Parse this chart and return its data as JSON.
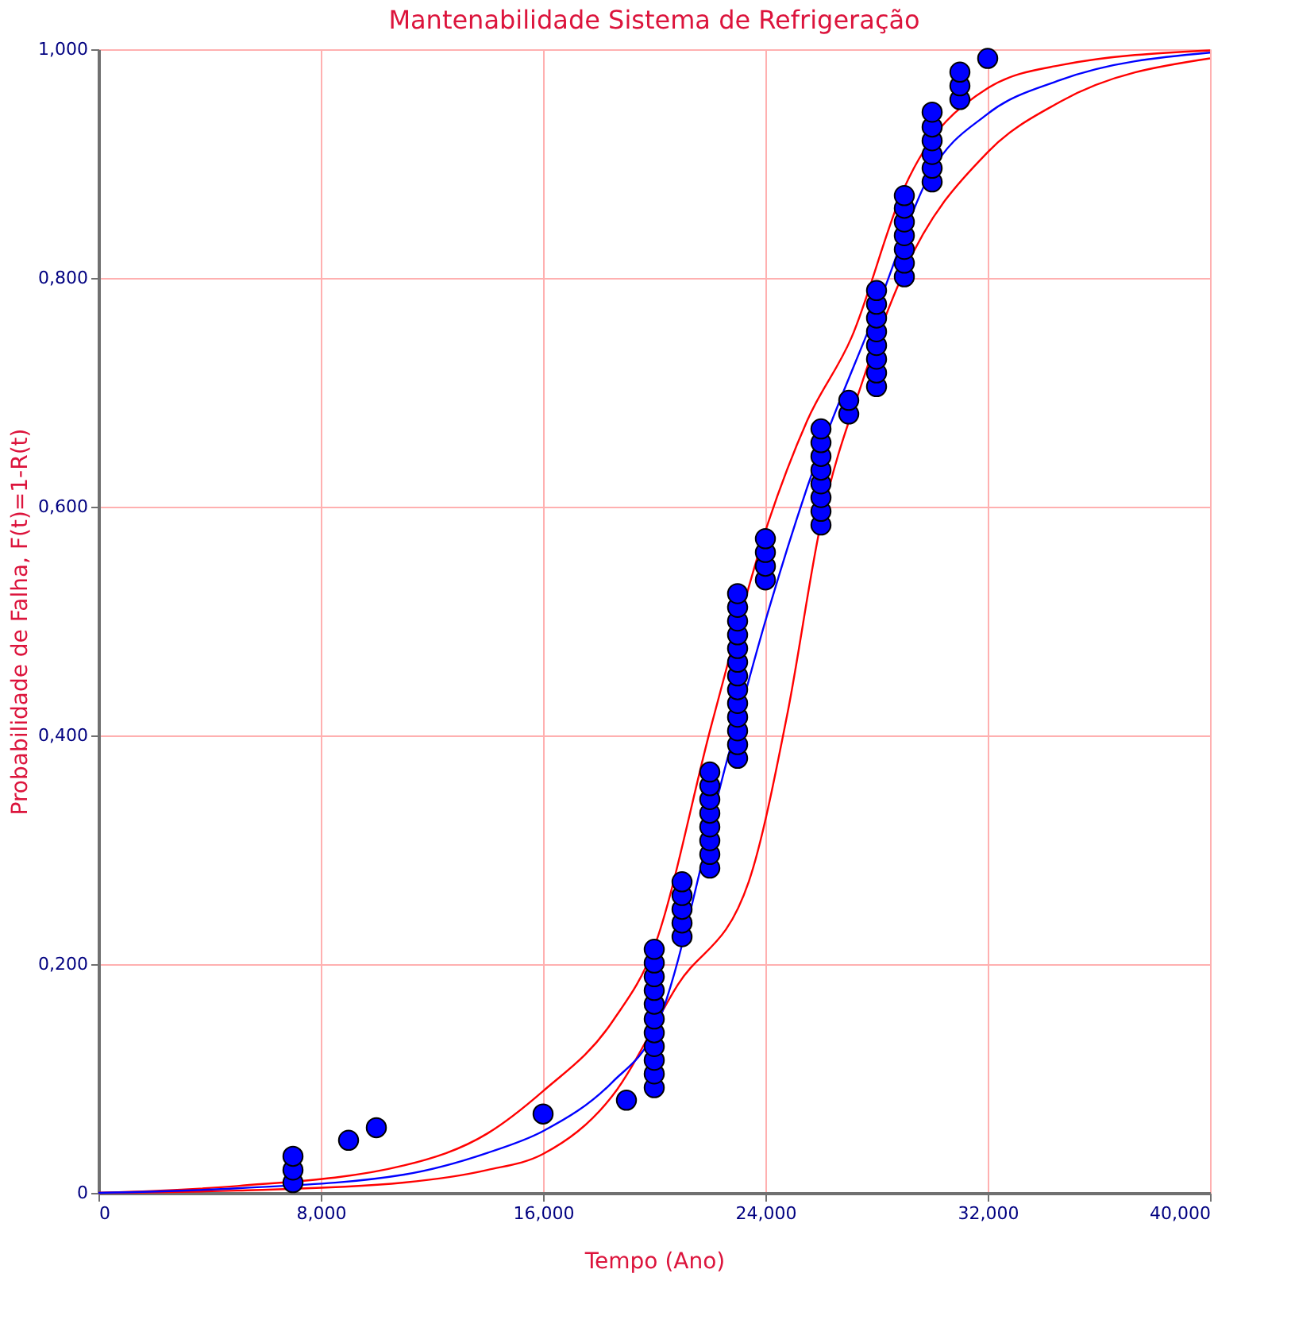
{
  "chart_data": {
    "type": "scatter",
    "title": "Mantenabilidade Sistema de Refrigeração",
    "xlabel": "Tempo (Ano)",
    "ylabel": "Probabilidade de Falha, F(t)=1-R(t)",
    "xlim": [
      0,
      40
    ],
    "ylim": [
      0,
      1
    ],
    "xticks": [
      0,
      {
        "value": 8,
        "label": "8,000"
      },
      {
        "value": 16,
        "label": "16,000"
      },
      {
        "value": 24,
        "label": "24,000"
      },
      {
        "value": 32,
        "label": "32,000"
      },
      {
        "value": 40,
        "label": "40,000"
      }
    ],
    "yticks": [
      0,
      {
        "value": 0.2,
        "label": "0,200"
      },
      {
        "value": 0.4,
        "label": "0,400"
      },
      {
        "value": 0.6,
        "label": "0,600"
      },
      {
        "value": 0.8,
        "label": "0,800"
      },
      {
        "value": 1,
        "label": "1,000"
      }
    ],
    "grid": true,
    "series": [
      {
        "type": "line",
        "color": "#ff0000",
        "x": [
          0,
          5,
          11,
          14,
          16,
          18.5,
          20,
          22.08,
          24.1,
          25.5,
          27.1,
          29,
          32,
          34.6,
          40
        ],
        "values": [
          0,
          0.006,
          0.024,
          0.052,
          0.089,
          0.15,
          0.215,
          0.411,
          0.586,
          0.675,
          0.748,
          0.879,
          0.966,
          0.986,
          0.999
        ]
      },
      {
        "type": "line",
        "color": "#ff0000",
        "x": [
          0,
          5,
          11,
          14,
          16,
          18.5,
          20.85,
          23.4,
          24.8,
          26,
          27.5,
          29,
          32,
          34.6,
          40
        ],
        "values": [
          0,
          0.002,
          0.009,
          0.02,
          0.034,
          0.085,
          0.182,
          0.272,
          0.42,
          0.586,
          0.71,
          0.806,
          0.91,
          0.954,
          0.992
        ]
      },
      {
        "type": "line",
        "color": "#0000ff",
        "x": [
          0,
          5,
          11,
          14,
          16,
          18.5,
          20,
          22.64,
          24,
          25.45,
          28,
          29.95,
          31.97,
          34.6,
          40
        ],
        "values": [
          0,
          0.004,
          0.016,
          0.035,
          0.054,
          0.097,
          0.141,
          0.38,
          0.5,
          0.613,
          0.772,
          0.892,
          0.943,
          0.973,
          0.997
        ]
      },
      {
        "color": "#0000ff",
        "marker": "circle",
        "x": [
          7,
          7,
          7,
          9,
          10,
          16,
          19,
          20,
          20,
          20,
          20,
          20,
          20,
          20,
          20,
          20,
          20,
          20,
          21,
          21,
          21,
          21,
          21,
          22,
          22,
          22,
          22,
          22,
          22,
          22,
          22,
          23,
          23,
          23,
          23,
          23,
          23,
          23,
          23,
          23,
          23,
          23,
          23,
          23,
          24,
          24,
          24,
          24,
          26,
          26,
          26,
          26,
          26,
          26,
          26,
          26,
          27,
          27,
          28,
          28,
          28,
          28,
          28,
          28,
          28,
          28,
          29,
          29,
          29,
          29,
          29,
          29,
          29,
          30,
          30,
          30,
          30,
          30,
          30,
          31,
          31,
          31,
          32
        ],
        "values": [
          0.009,
          0.02,
          0.032,
          0.046,
          0.057,
          0.069,
          0.081,
          0.092,
          0.104,
          0.116,
          0.128,
          0.14,
          0.152,
          0.165,
          0.177,
          0.189,
          0.201,
          0.213,
          0.224,
          0.236,
          0.248,
          0.26,
          0.272,
          0.284,
          0.296,
          0.308,
          0.32,
          0.332,
          0.344,
          0.356,
          0.368,
          0.38,
          0.392,
          0.404,
          0.416,
          0.428,
          0.44,
          0.452,
          0.464,
          0.476,
          0.488,
          0.5,
          0.512,
          0.524,
          0.536,
          0.548,
          0.56,
          0.572,
          0.584,
          0.596,
          0.608,
          0.62,
          0.632,
          0.644,
          0.656,
          0.668,
          0.681,
          0.693,
          0.705,
          0.717,
          0.729,
          0.741,
          0.753,
          0.765,
          0.777,
          0.789,
          0.801,
          0.813,
          0.825,
          0.837,
          0.849,
          0.861,
          0.872,
          0.884,
          0.896,
          0.908,
          0.92,
          0.932,
          0.945,
          0.956,
          0.968,
          0.98,
          0.992
        ]
      }
    ]
  }
}
